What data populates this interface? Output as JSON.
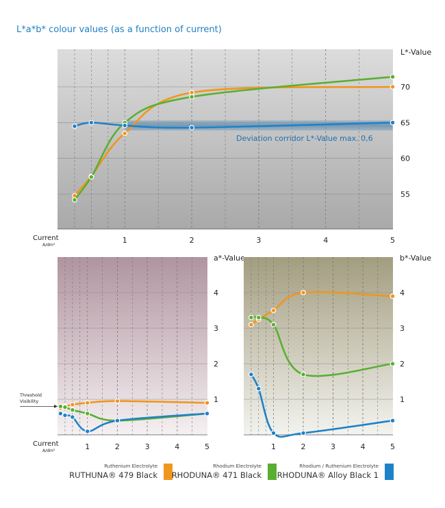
{
  "title": "L*a*b* colour values (as a function of current)",
  "colors": {
    "ruthuna": "#f0961e",
    "rhoduna": "#5aaf32",
    "alloy": "#1e82c8",
    "axis_blue": "#1f7fc3"
  },
  "x_axis": {
    "label": "Current",
    "unit": "A/dm²",
    "ticks": [
      "1",
      "2",
      "3",
      "4",
      "5"
    ]
  },
  "threshold_label": [
    "Threshold",
    "Visibility"
  ],
  "legend": [
    {
      "sub": "Ruthenium Electrolyte",
      "name": "RUTHUNA® 479 Black",
      "color": "#f0961e"
    },
    {
      "sub": "Rhodium Electrolyte",
      "name": "RHODUNA® 471 Black",
      "color": "#5aaf32"
    },
    {
      "sub": "Rhodium / Ruthenium Electrolyte",
      "name": "RHODUNA® Alloy Black 1",
      "color": "#1e82c8"
    }
  ],
  "chart_data": [
    {
      "type": "line",
      "ylabel": "L*-Value",
      "xlim": [
        0,
        5
      ],
      "ylim": [
        50,
        75
      ],
      "yticks": [
        "55",
        "60",
        "65",
        "70"
      ],
      "annotation": "Deviation corridor L*-Value max. 0,6",
      "series": [
        {
          "name": "RUTHUNA® 479 Black",
          "color": "#f0961e",
          "x": [
            0.25,
            0.5,
            1,
            2,
            5
          ],
          "y": [
            54.8,
            57.5,
            63.5,
            69.2,
            70
          ]
        },
        {
          "name": "RHODUNA® 471 Black",
          "color": "#5aaf32",
          "x": [
            0.25,
            0.5,
            1,
            2,
            5
          ],
          "y": [
            54.2,
            57.4,
            65,
            68.6,
            71.4
          ]
        },
        {
          "name": "RHODUNA® Alloy Black 1",
          "color": "#1e82c8",
          "x": [
            0.25,
            0.5,
            1,
            2,
            5
          ],
          "y": [
            64.5,
            65,
            64.6,
            64.3,
            65
          ]
        }
      ]
    },
    {
      "type": "line",
      "ylabel": "a*-Value",
      "xlim": [
        0,
        5
      ],
      "ylim": [
        0,
        5
      ],
      "yticks": [
        "1",
        "2",
        "3",
        "4"
      ],
      "threshold": 0.8,
      "series": [
        {
          "name": "RUTHUNA® 479 Black",
          "color": "#f0961e",
          "x": [
            0.1,
            0.25,
            0.5,
            1,
            2,
            5
          ],
          "y": [
            0.75,
            0.8,
            0.85,
            0.9,
            0.95,
            0.9
          ]
        },
        {
          "name": "RHODUNA® 471 Black",
          "color": "#5aaf32",
          "x": [
            0.1,
            0.25,
            0.5,
            1,
            2,
            5
          ],
          "y": [
            0.8,
            0.78,
            0.7,
            0.6,
            0.4,
            0.6
          ]
        },
        {
          "name": "RHODUNA® Alloy Black 1",
          "color": "#1e82c8",
          "x": [
            0.1,
            0.25,
            0.5,
            1,
            2,
            5
          ],
          "y": [
            0.6,
            0.55,
            0.5,
            0.1,
            0.4,
            0.6
          ]
        }
      ]
    },
    {
      "type": "line",
      "ylabel": "b*-Value",
      "xlim": [
        0,
        5
      ],
      "ylim": [
        0,
        5
      ],
      "yticks": [
        "1",
        "2",
        "3",
        "4"
      ],
      "series": [
        {
          "name": "RUTHUNA® 479 Black",
          "color": "#f0961e",
          "x": [
            0.25,
            0.5,
            1,
            2,
            5
          ],
          "y": [
            3.1,
            3.25,
            3.5,
            4,
            3.9
          ]
        },
        {
          "name": "RHODUNA® 471 Black",
          "color": "#5aaf32",
          "x": [
            0.25,
            0.5,
            1,
            2,
            5
          ],
          "y": [
            3.3,
            3.3,
            3.1,
            1.7,
            2
          ]
        },
        {
          "name": "RHODUNA® Alloy Black 1",
          "color": "#1e82c8",
          "x": [
            0.25,
            0.5,
            1,
            2,
            5
          ],
          "y": [
            1.7,
            1.3,
            0.05,
            0.05,
            0.4
          ]
        }
      ]
    }
  ]
}
